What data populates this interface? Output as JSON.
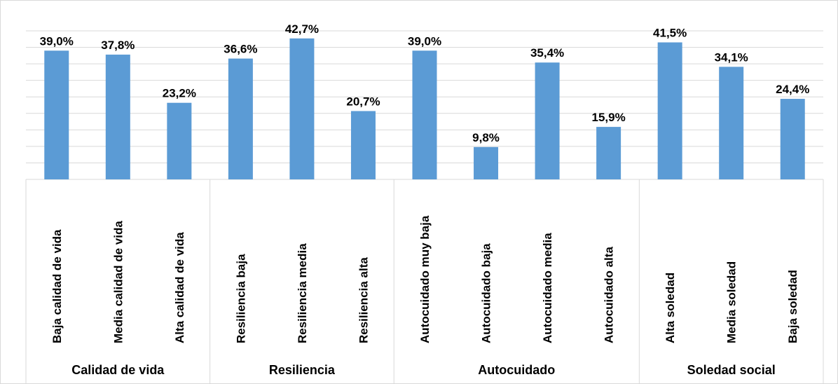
{
  "chart_data": {
    "type": "bar",
    "color": "#5b9bd5",
    "ylim": [
      0,
      45
    ],
    "yticks": [
      0,
      5,
      10,
      15,
      20,
      25,
      30,
      35,
      40,
      45
    ],
    "grid": true,
    "groups": [
      {
        "name": "Calidad de vida",
        "categories": [
          "Baja calidad de vida",
          "Media calidad de vida",
          "Alta calidad de vida"
        ],
        "values": [
          39.0,
          37.8,
          23.2
        ],
        "value_labels": [
          "39,0%",
          "37,8%",
          "23,2%"
        ]
      },
      {
        "name": "Resiliencia",
        "categories": [
          "Resiliencia baja",
          "Resiliencia media",
          "Resiliencia alta"
        ],
        "values": [
          36.6,
          42.7,
          20.7
        ],
        "value_labels": [
          "36,6%",
          "42,7%",
          "20,7%"
        ]
      },
      {
        "name": "Autocuidado",
        "categories": [
          "Autocuidado muy baja",
          "Autocuidado baja",
          "Autocuidado media",
          "Autocuidado alta"
        ],
        "values": [
          39.0,
          9.8,
          35.4,
          15.9
        ],
        "value_labels": [
          "39,0%",
          "9,8%",
          "35,4%",
          "15,9%"
        ]
      },
      {
        "name": "Soledad social",
        "categories": [
          "Alta soledad",
          "Media soledad",
          "Baja soledad"
        ],
        "values": [
          41.5,
          34.1,
          24.4
        ],
        "value_labels": [
          "41,5%",
          "34,1%",
          "24,4%"
        ]
      }
    ]
  }
}
